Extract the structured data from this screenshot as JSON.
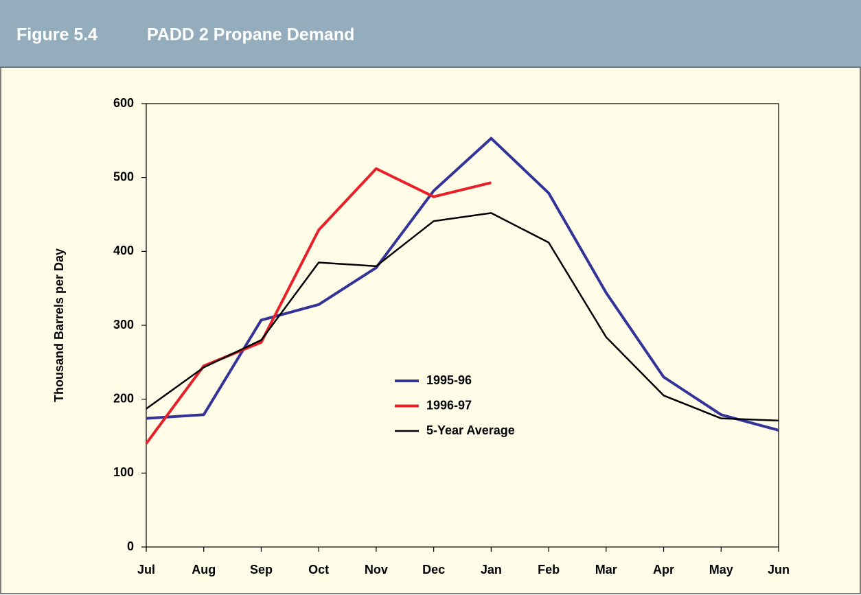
{
  "chart_data": {
    "type": "line",
    "figure_label": "Figure 5.4",
    "title": "PADD 2 Propane Demand",
    "y_label": "Thousand Barrels per Day",
    "categories": [
      "Jul",
      "Aug",
      "Sep",
      "Oct",
      "Nov",
      "Dec",
      "Jan",
      "Feb",
      "Mar",
      "Apr",
      "May",
      "Jun"
    ],
    "series": [
      {
        "name": "1995-96",
        "color": "#333399",
        "width": 4,
        "values": [
          174,
          179,
          307,
          328,
          378,
          482,
          553,
          479,
          344,
          230,
          179,
          158
        ]
      },
      {
        "name": "1996-97",
        "color": "#e8202a",
        "width": 4,
        "values": [
          140,
          245,
          277,
          429,
          512,
          474,
          493,
          null,
          null,
          null,
          null,
          null
        ]
      },
      {
        "name": "5-Year Average",
        "color": "#000000",
        "width": 2.5,
        "values": [
          187,
          243,
          280,
          385,
          380,
          441,
          452,
          412,
          284,
          205,
          174,
          171
        ]
      }
    ],
    "ylim": [
      0,
      600
    ],
    "yticks": [
      0,
      100,
      200,
      300,
      400,
      500,
      600
    ],
    "grid": false
  }
}
